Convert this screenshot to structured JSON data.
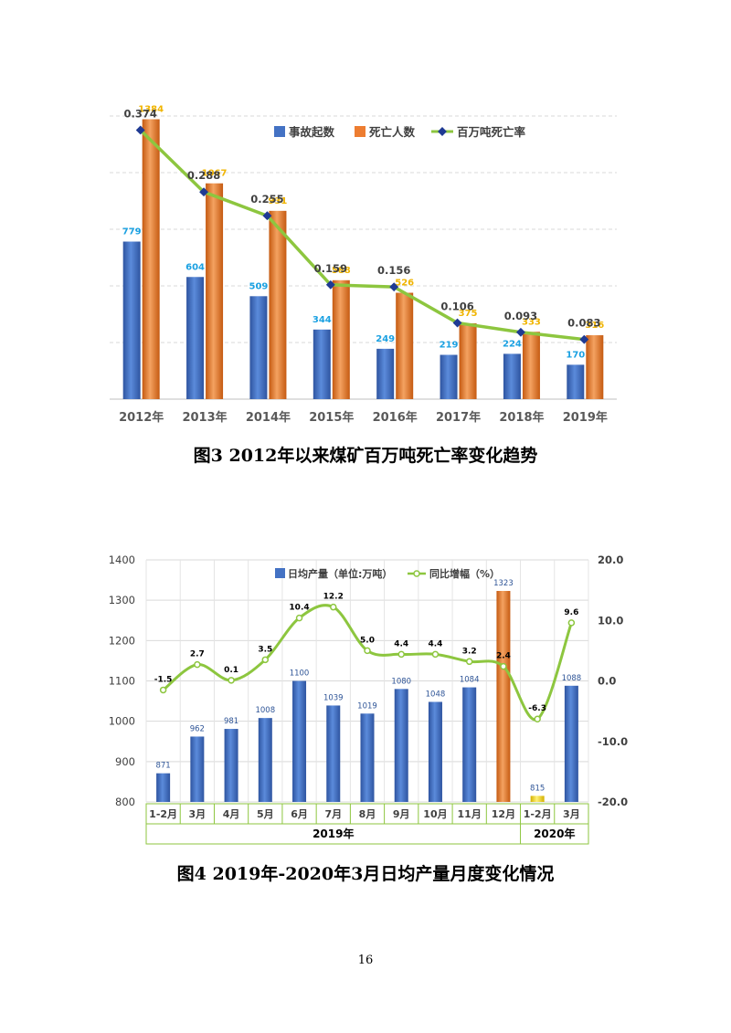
{
  "page": {
    "caption1": "图3    2012年以来煤矿百万吨死亡率变化趋势",
    "caption2": "图4    2019年-2020年3月日均产量月度变化情况",
    "page_number": "16"
  },
  "chart_data": [
    {
      "type": "bar",
      "categories": [
        "2012年",
        "2013年",
        "2014年",
        "2015年",
        "2016年",
        "2017年",
        "2018年",
        "2019年"
      ],
      "series": [
        {
          "name": "事故起数",
          "kind": "bar",
          "color": "#4472C4",
          "label_color": "#1BA1E2",
          "values": [
            779,
            604,
            509,
            344,
            249,
            219,
            224,
            170
          ]
        },
        {
          "name": "死亡人数",
          "kind": "bar",
          "color": "#ED7D31",
          "label_color": "#F0B400",
          "values": [
            1384,
            1067,
            931,
            588,
            526,
            375,
            333,
            316
          ]
        },
        {
          "name": "百万吨死亡率",
          "kind": "line",
          "color": "#8DC63F",
          "marker_color": "#1F3A93",
          "values": [
            0.374,
            0.288,
            0.255,
            0.159,
            0.156,
            0.106,
            0.093,
            0.083
          ]
        }
      ],
      "ylim_bars": [
        0,
        1400
      ],
      "grid": true,
      "legend_position": "top-right"
    },
    {
      "type": "bar",
      "categories": [
        "1-2月",
        "3月",
        "4月",
        "5月",
        "6月",
        "7月",
        "8月",
        "9月",
        "10月",
        "11月",
        "12月",
        "1-2月",
        "3月"
      ],
      "groups": [
        {
          "label": "2019年",
          "count": 11
        },
        {
          "label": "2020年",
          "count": 2
        }
      ],
      "series": [
        {
          "name": "日均产量（单位:万吨）",
          "kind": "bar",
          "color": "#4472C4",
          "values": [
            871,
            962,
            981,
            1008,
            1100,
            1039,
            1019,
            1080,
            1048,
            1084,
            1323,
            815,
            1088
          ],
          "highlight": {
            "10": "#ED7D31",
            "11": "#FFD700"
          }
        },
        {
          "name": "同比增幅（%）",
          "kind": "line",
          "color": "#8DC63F",
          "values": [
            -1.5,
            2.7,
            0.1,
            3.5,
            10.4,
            12.2,
            5.0,
            4.4,
            4.4,
            3.2,
            2.4,
            -6.3,
            9.6
          ],
          "labels": [
            "-1.5",
            "2.7",
            "0.1",
            "3.5",
            "10.4",
            "12.2",
            "5.0",
            "4.4",
            "4.4",
            "3.2",
            "2.4",
            "-6.3",
            "9.6"
          ]
        }
      ],
      "ylim_left": [
        800,
        1400
      ],
      "yticks_left": [
        "800",
        "900",
        "1000",
        "1100",
        "1200",
        "1300",
        "1400"
      ],
      "ylim_right": [
        -20,
        20
      ],
      "yticks_right": [
        "-20.0",
        "-10.0",
        "0.0",
        "10.0",
        "20.0"
      ],
      "grid": true,
      "legend_position": "top-center"
    }
  ]
}
